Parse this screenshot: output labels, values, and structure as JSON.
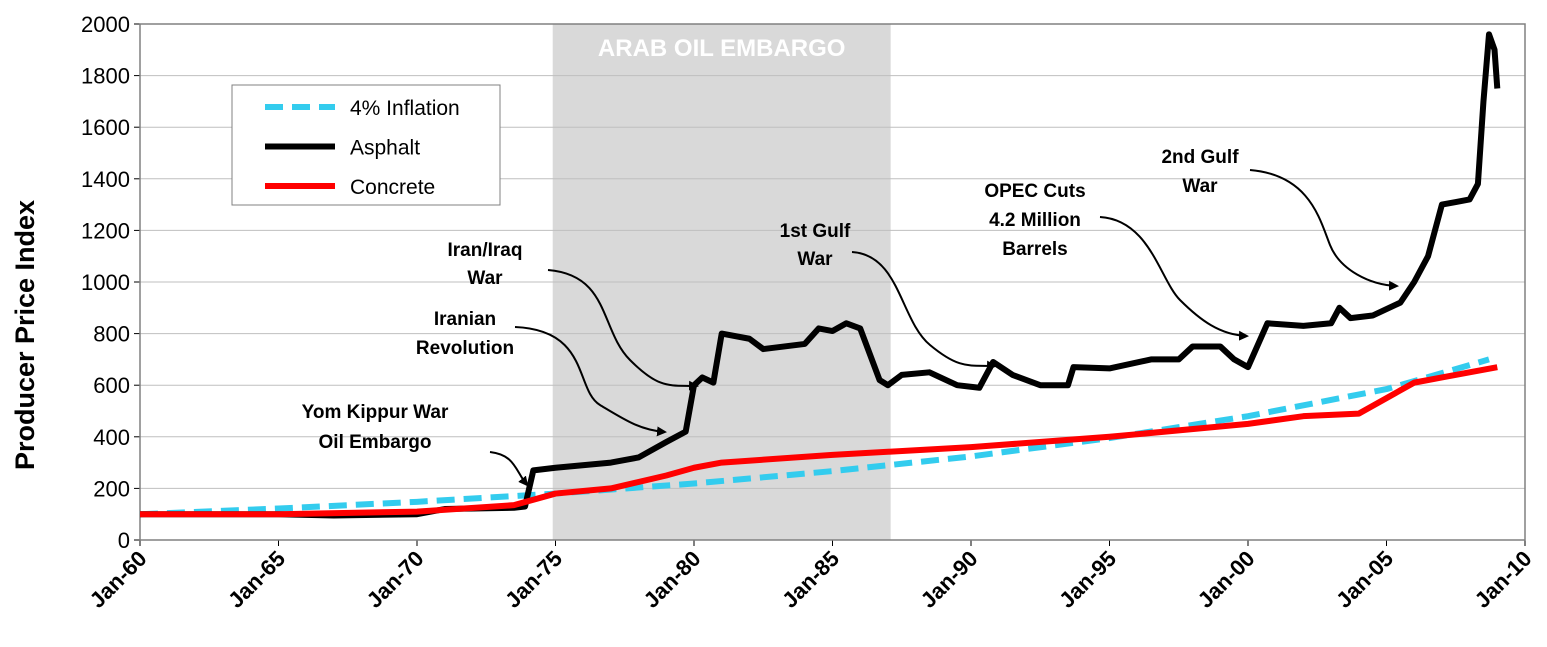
{
  "chart_data": {
    "type": "line",
    "y_label": "Producer Price Index",
    "xlim": [
      1960,
      2010
    ],
    "xticks": [
      {
        "value": 1960,
        "label": "Jan-60"
      },
      {
        "value": 1965,
        "label": "Jan-65"
      },
      {
        "value": 1970,
        "label": "Jan-70"
      },
      {
        "value": 1975,
        "label": "Jan-75"
      },
      {
        "value": 1980,
        "label": "Jan-80"
      },
      {
        "value": 1985,
        "label": "Jan-85"
      },
      {
        "value": 1990,
        "label": "Jan-90"
      },
      {
        "value": 1995,
        "label": "Jan-95"
      },
      {
        "value": 2000,
        "label": "Jan-00"
      },
      {
        "value": 2005,
        "label": "Jan-05"
      },
      {
        "value": 2010,
        "label": "Jan-10"
      }
    ],
    "ylim": [
      0,
      2000
    ],
    "yticks": [
      0,
      200,
      400,
      600,
      800,
      1000,
      1200,
      1400,
      1600,
      1800,
      2000
    ],
    "grid": true,
    "legend": "upper left",
    "shaded_span": {
      "text": "ARAB OIL EMBARGO",
      "x_range": [
        1974.9,
        1987.1
      ],
      "color": "#d9d9d9"
    },
    "annotations": [
      {
        "lines": [
          "Yom Kippur War",
          "Oil Embargo"
        ]
      },
      {
        "lines": [
          "Iranian",
          "Revolution"
        ]
      },
      {
        "lines": [
          "Iran/Iraq",
          "War"
        ]
      },
      {
        "lines": [
          "1st Gulf",
          "War"
        ]
      },
      {
        "lines": [
          "OPEC Cuts",
          "4.2 Million",
          "Barrels"
        ]
      },
      {
        "lines": [
          "2nd Gulf",
          "War"
        ]
      }
    ],
    "series": [
      {
        "name": "4% Inflation",
        "color": "#33ccee",
        "dashed": true,
        "x": [
          1960,
          1965,
          1970,
          1975,
          1980,
          1985,
          1990,
          1995,
          2000,
          2005,
          2008.7
        ],
        "values": [
          100,
          122,
          148,
          180,
          219,
          267,
          324,
          395,
          480,
          585,
          700
        ]
      },
      {
        "name": "Asphalt",
        "color": "#000000",
        "dashed": false,
        "x": [
          1960,
          1965,
          1967,
          1970,
          1971,
          1973.5,
          1973.9,
          1974.2,
          1975,
          1977,
          1978,
          1979,
          1979.7,
          1980,
          1980.3,
          1980.7,
          1981,
          1982,
          1982.5,
          1984,
          1984.5,
          1985,
          1985.5,
          1986,
          1986.7,
          1987,
          1987.5,
          1988.5,
          1989.5,
          1990.3,
          1990.8,
          1991.5,
          1992.5,
          1993.5,
          1993.7,
          1995,
          1996.5,
          1997.5,
          1998,
          1999,
          1999.5,
          2000,
          2000.7,
          2002,
          2003,
          2003.3,
          2003.7,
          2004.5,
          2005.5,
          2006,
          2006.5,
          2007,
          2007.5,
          2008,
          2008.3,
          2008.5,
          2008.7,
          2008.9,
          2009
        ],
        "values": [
          100,
          100,
          95,
          100,
          120,
          125,
          130,
          270,
          280,
          300,
          320,
          380,
          420,
          600,
          630,
          610,
          800,
          780,
          740,
          760,
          820,
          810,
          840,
          820,
          620,
          600,
          640,
          650,
          600,
          590,
          690,
          640,
          600,
          600,
          670,
          665,
          700,
          700,
          750,
          750,
          700,
          670,
          840,
          830,
          840,
          900,
          860,
          870,
          920,
          1000,
          1100,
          1300,
          1310,
          1320,
          1380,
          1700,
          1960,
          1900,
          1750
        ]
      },
      {
        "name": "Concrete",
        "color": "#ff0000",
        "dashed": false,
        "x": [
          1960,
          1965,
          1970,
          1973.5,
          1975,
          1977,
          1979,
          1980,
          1981,
          1985,
          1990,
          1995,
          2000,
          2002,
          2004,
          2005,
          2006,
          2007,
          2009
        ],
        "values": [
          100,
          100,
          110,
          135,
          180,
          200,
          250,
          280,
          300,
          330,
          360,
          400,
          450,
          480,
          490,
          550,
          610,
          630,
          670
        ]
      }
    ]
  }
}
